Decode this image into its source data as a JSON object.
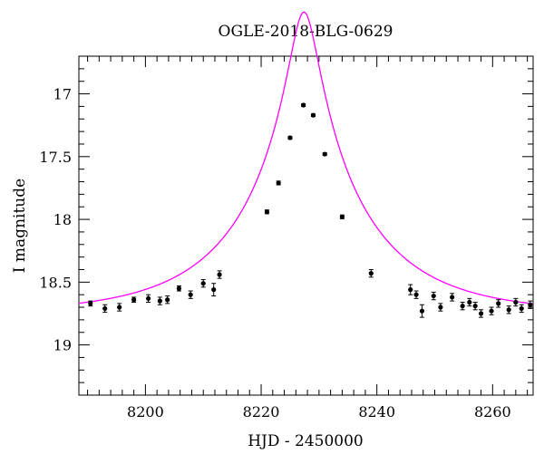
{
  "chart_data": {
    "type": "scatter",
    "title": "OGLE-2018-BLG-0629",
    "xlabel": "HJD - 2450000",
    "ylabel": "I magnitude",
    "xlim": [
      8188.5,
      8267
    ],
    "ylim": [
      19.4,
      16.7
    ],
    "y_inverted": true,
    "x_ticks": [
      8200,
      8220,
      8240,
      8260
    ],
    "y_ticks": [
      17,
      17.5,
      18,
      18.5,
      19
    ],
    "x_ticks_labels": [
      "8200",
      "8220",
      "8240",
      "8260"
    ],
    "y_ticks_labels": [
      "17",
      "17.5",
      "18",
      "18.5",
      "19"
    ],
    "grid": false,
    "colors": {
      "points": "#000000",
      "model": "#ff00ff"
    },
    "model": {
      "t0": 8227.4,
      "u0": 0.11,
      "tE": 21.3,
      "I_base": 18.75
    },
    "series": [
      {
        "x": [
          8190.5,
          8193.0,
          8195.5,
          8198.0,
          8200.5,
          8202.5,
          8203.8,
          8205.8,
          8207.8,
          8210.0,
          8211.8,
          8212.8,
          8221.0,
          8223.0,
          8225.0,
          8227.3,
          8229.0,
          8231.0,
          8234.0,
          8239.0,
          8245.8,
          8246.8,
          8247.8,
          8249.8,
          8251.0,
          8253.0,
          8254.8,
          8256.0,
          8257.0,
          8258.0,
          8259.8,
          8261.0,
          8262.8,
          8264.0,
          8265.0,
          8266.5
        ],
        "y": [
          18.67,
          18.71,
          18.7,
          18.64,
          18.63,
          18.65,
          18.64,
          18.55,
          18.6,
          18.51,
          18.56,
          18.44,
          17.94,
          17.71,
          17.35,
          17.09,
          17.17,
          17.48,
          17.98,
          18.43,
          18.56,
          18.6,
          18.73,
          18.61,
          18.7,
          18.62,
          18.69,
          18.66,
          18.69,
          18.75,
          18.73,
          18.67,
          18.72,
          18.66,
          18.71,
          18.68
        ],
        "err": [
          0.02,
          0.03,
          0.03,
          0.02,
          0.03,
          0.03,
          0.03,
          0.02,
          0.03,
          0.03,
          0.05,
          0.03,
          0.015,
          0.015,
          0.01,
          0.01,
          0.01,
          0.01,
          0.015,
          0.03,
          0.04,
          0.03,
          0.05,
          0.03,
          0.03,
          0.03,
          0.03,
          0.03,
          0.03,
          0.03,
          0.03,
          0.03,
          0.03,
          0.03,
          0.03,
          0.03
        ]
      }
    ]
  }
}
